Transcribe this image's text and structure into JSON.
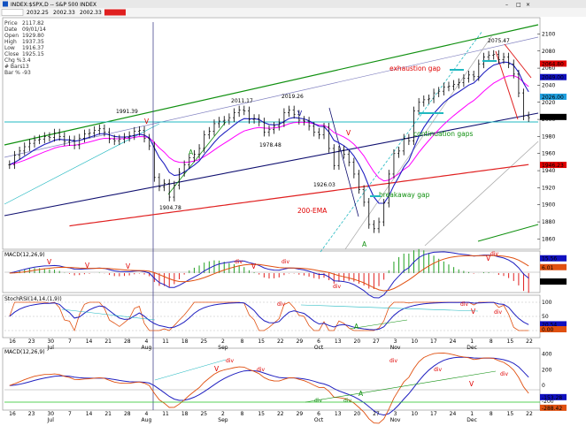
{
  "window": {
    "title": "INDEX:$SPX,D -- S&P 500 INDEX",
    "toolbar_fields": [
      "2032.25",
      "2002.33",
      "2002.33"
    ],
    "controls": [
      "–",
      "□",
      "×"
    ]
  },
  "info_panel": {
    "items": [
      {
        "label": "Price",
        "value": "2117.82"
      },
      {
        "label": "Date",
        "value": "09/01/14"
      },
      {
        "label": "Open",
        "value": "1929.80"
      },
      {
        "label": "High",
        "value": "1937.35"
      },
      {
        "label": "Low",
        "value": "1916.37"
      },
      {
        "label": "Close",
        "value": "1925.15"
      },
      {
        "label": "Chg %",
        "value": "3.4"
      },
      {
        "label": "# Bars",
        "value": "13"
      },
      {
        "label": "Bar %",
        "value": "-93"
      }
    ]
  },
  "colors": {
    "price": "#000000",
    "ema_fast": "#2020c0",
    "ema_slow": "#ff00ff",
    "ema200": "#e02020",
    "green_line": "#109010",
    "navy_line": "#101070",
    "cyan_line": "#20b8c0",
    "macd_line": "#2020c0",
    "signal_line": "#e05010",
    "annotation_red": "#e00000",
    "annotation_green": "#109010",
    "annotation_blue": "#1010a0"
  },
  "chart_data": [
    {
      "type": "line",
      "title": "INDEX:$SPX,D -- S&P 500 INDEX",
      "y_ticks": [
        1860,
        1880,
        1900,
        1920,
        1940,
        1960,
        1980,
        2000,
        2020,
        2040,
        2060,
        2080,
        2100
      ],
      "ylim": [
        1848,
        2117
      ],
      "x_tick_labels": [
        "16",
        "23",
        "30",
        "7",
        "14",
        "21",
        "28",
        "4",
        "11",
        "18",
        "25",
        "2",
        "8",
        "15",
        "22",
        "29",
        "6",
        "13",
        "20",
        "27",
        "3",
        "10",
        "17",
        "24",
        "1",
        "8",
        "15",
        "22"
      ],
      "month_labels": [
        "Jul",
        "Aug",
        "Sep",
        "Oct",
        "Nov",
        "Dec"
      ],
      "price_series": [
        1947,
        1958,
        1963,
        1968,
        1972,
        1976,
        1977,
        1980,
        1979,
        1984,
        1980,
        1974,
        1976,
        1970,
        1978,
        1983,
        1984,
        1987,
        1989,
        1985,
        1977,
        1975,
        1977,
        1979,
        1981,
        1986,
        1987,
        1978,
        1969,
        1932,
        1921,
        1925,
        1909,
        1923,
        1938,
        1947,
        1955,
        1959,
        1966,
        1982,
        1986,
        1995,
        1998,
        1999,
        2002,
        2008,
        2011,
        2010,
        2000,
        2001,
        1997,
        1985,
        1988,
        1992,
        1996,
        2008,
        2011,
        2006,
        1999,
        1998,
        1992,
        1985,
        1982,
        1991,
        1966,
        1946,
        1964,
        1959,
        1950,
        1936,
        1918,
        1903,
        1877,
        1872,
        1880,
        1902,
        1936,
        1960,
        1963,
        1978,
        1975,
        2010,
        2020,
        2023,
        2024,
        2031,
        2033,
        2038,
        2039,
        2041,
        2043,
        2048,
        2052,
        2050,
        2065,
        2073,
        2075,
        2076,
        2070,
        2073,
        2065,
        2053,
        2031,
        2004,
        2002
      ],
      "annotations": [
        "1991.39",
        "2011.17",
        "2019.26",
        "1978.48",
        "1904.78",
        "1926.03",
        "2075.47",
        "exhaustion gap",
        "continuation gaps",
        "breakaway gap",
        "200-EMA",
        "V",
        "A"
      ],
      "right_tags": [
        {
          "value": "2064.80",
          "color": "#e00000"
        },
        {
          "value": "2049.00",
          "color": "#1010c0"
        },
        {
          "value": "2026.00",
          "color": "#20a0e0"
        },
        {
          "value": "2002.33",
          "color": "#000000"
        },
        {
          "value": "1946.23",
          "color": "#e00000"
        }
      ]
    },
    {
      "type": "line",
      "title": "MACD(12,26,9)",
      "ylim": [
        -20,
        22
      ],
      "right_tags": [
        {
          "value": "15.56",
          "color": "#1010c0"
        },
        {
          "value": "6.01",
          "color": "#e05010"
        },
        {
          "value": "-9.55",
          "color": "#000000"
        }
      ],
      "annotations": [
        "div",
        "V"
      ]
    },
    {
      "type": "line",
      "title": "StochRSI(14,14,(1,9))",
      "y_ticks": [
        0,
        50,
        100
      ],
      "ylim": [
        0,
        100
      ],
      "right_tags": [
        {
          "value": "20.54",
          "color": "#1010c0"
        },
        {
          "value": "0.00",
          "color": "#e05010"
        }
      ],
      "annotations": [
        "div",
        "V",
        "A"
      ]
    },
    {
      "type": "line",
      "title": "MACD(12,26,9)",
      "y_ticks": [
        -200,
        0,
        200,
        400
      ],
      "ylim": [
        -290,
        430
      ],
      "right_tags": [
        {
          "value": "-153.28",
          "color": "#1010c0"
        },
        {
          "value": "-288.42",
          "color": "#e05010"
        }
      ],
      "annotations": [
        "div",
        "V",
        "A"
      ]
    }
  ]
}
